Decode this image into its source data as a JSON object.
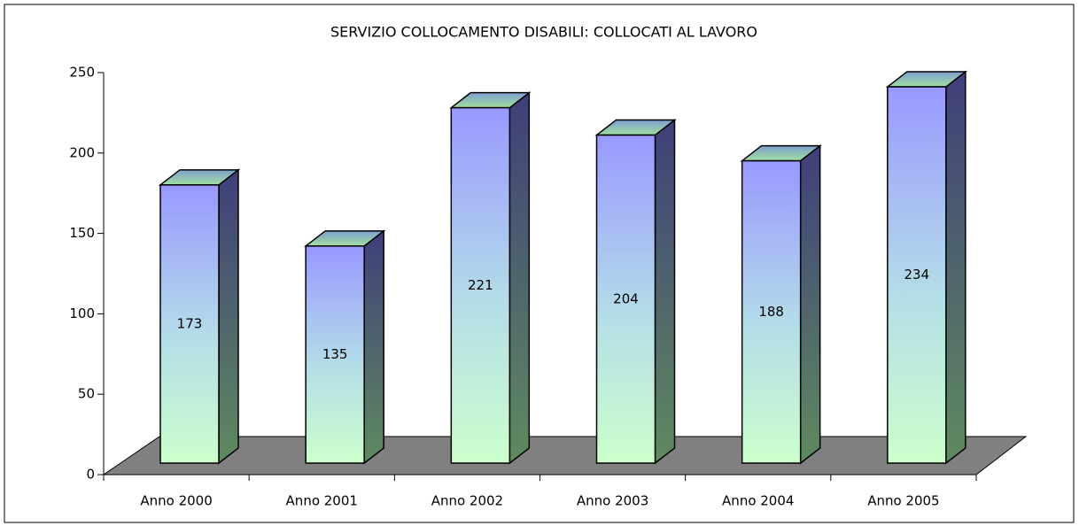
{
  "chart_data": {
    "type": "bar3d",
    "title": "SERVIZIO COLLOCAMENTO DISABILI: COLLOCATI AL LAVORO",
    "categories": [
      "Anno 2000",
      "Anno 2001",
      "Anno 2002",
      "Anno 2003",
      "Anno 2004",
      "Anno 2005"
    ],
    "values": [
      173,
      135,
      221,
      204,
      188,
      234
    ],
    "ylim": [
      0,
      250
    ],
    "yticks": [
      0,
      50,
      100,
      150,
      200,
      250
    ],
    "grid": false
  }
}
